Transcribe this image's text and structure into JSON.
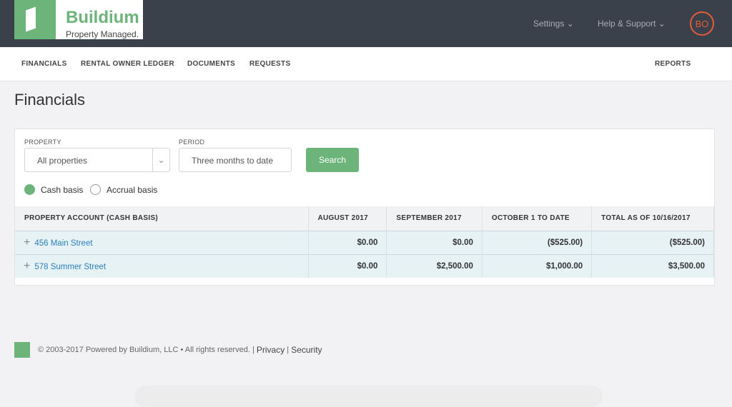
{
  "header": {
    "logo_name": "Buildium",
    "logo_tagline": "Property Managed.",
    "settings": "Settings ⌄",
    "help": "Help & Support ⌄",
    "avatar": "BO"
  },
  "subnav": {
    "items": [
      "FINANCIALS",
      "RENTAL OWNER LEDGER",
      "DOCUMENTS",
      "REQUESTS"
    ],
    "reports": "REPORTS"
  },
  "page_title": "Financials",
  "filters": {
    "property_label": "PROPERTY",
    "property_value": "All properties",
    "period_label": "PERIOD",
    "period_value": "Three months to date",
    "search": "Search",
    "cash": "Cash basis",
    "accrual": "Accrual basis",
    "selected_basis": "cash"
  },
  "table": {
    "headers": [
      "PROPERTY ACCOUNT (CASH BASIS)",
      "AUGUST 2017",
      "SEPTEMBER 2017",
      "OCTOBER 1 TO DATE",
      "TOTAL AS OF 10/16/2017"
    ],
    "rows": [
      [
        "456 Main Street",
        "$0.00",
        "$0.00",
        "($525.00)",
        "($525.00)"
      ],
      [
        "578 Summer Street",
        "$0.00",
        "$2,500.00",
        "$1,000.00",
        "$3,500.00"
      ]
    ]
  },
  "footer": {
    "copyright": "© 2003-2017 Powered by Buildium, LLC • All rights reserved. |",
    "privacy": "Privacy",
    "sep": "|",
    "security": "Security"
  },
  "colors": {
    "brand": "#6cb47a",
    "header": "#3a414b",
    "avatar": "#e45b3a",
    "link": "#2c7fb8"
  }
}
